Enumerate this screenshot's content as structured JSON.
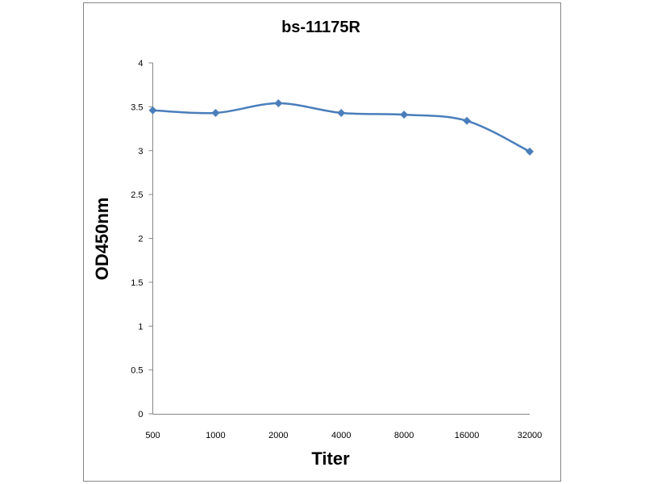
{
  "chart_data": {
    "type": "line",
    "title": "bs-11175R",
    "xlabel": "Titer",
    "ylabel": "OD450nm",
    "categories": [
      "500",
      "1000",
      "2000",
      "4000",
      "8000",
      "16000",
      "32000"
    ],
    "series": [
      {
        "values": [
          3.46,
          3.43,
          3.54,
          3.43,
          3.41,
          3.34,
          2.99
        ]
      }
    ],
    "ylim": [
      0,
      4
    ],
    "yticks": [
      "0",
      "0.5",
      "1",
      "1.5",
      "2",
      "2.5",
      "3",
      "3.5",
      "4"
    ],
    "grid": false,
    "legend": "none",
    "colors": {
      "line": "#4a7ebb",
      "axis": "#868686",
      "frame": "#868686"
    }
  }
}
